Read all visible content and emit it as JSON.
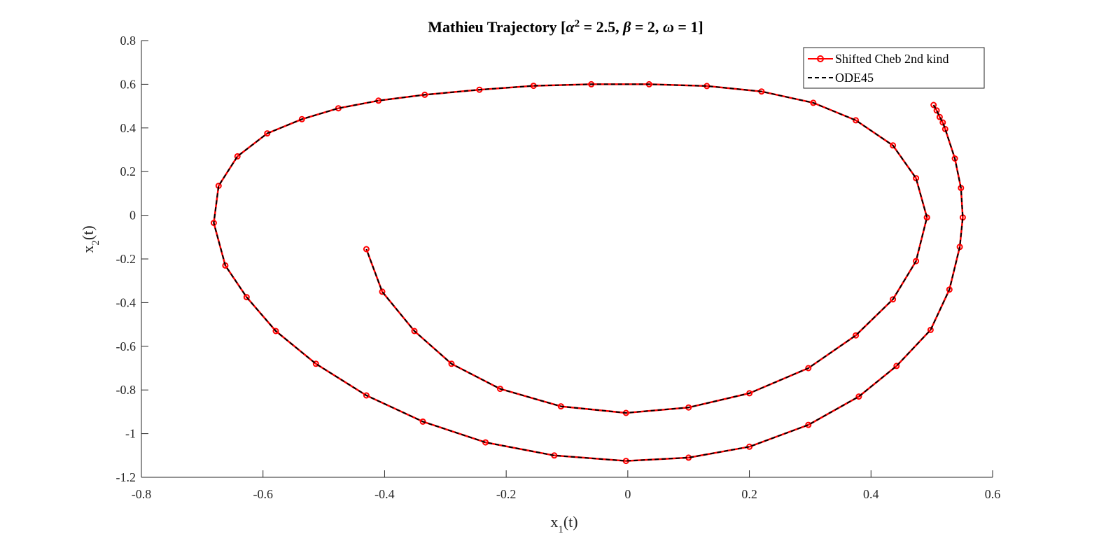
{
  "chart_data": {
    "type": "line",
    "title": {
      "prefix": "Mathieu Trajectory [",
      "alpha_symbol": "α",
      "alpha_exponent": "2",
      "alpha_value": " = 2.5, ",
      "beta_symbol": "β",
      "beta_value": " = 2, ",
      "omega_symbol": "ω",
      "omega_value": " = 1]"
    },
    "xlabel": {
      "base": "x",
      "sub": "1",
      "suffix": "(t)"
    },
    "ylabel": {
      "base": "x",
      "sub": "2",
      "suffix": "(t)"
    },
    "xlim": [
      -0.8,
      0.6
    ],
    "ylim": [
      -1.2,
      0.8
    ],
    "xticks": [
      -0.8,
      -0.6,
      -0.4,
      -0.2,
      0,
      0.2,
      0.4,
      0.6
    ],
    "xtick_labels": [
      "-0.8",
      "-0.6",
      "-0.4",
      "-0.2",
      "0",
      "0.2",
      "0.4",
      "0.6"
    ],
    "yticks": [
      -1.2,
      -1,
      -0.8,
      -0.6,
      -0.4,
      -0.2,
      0,
      0.2,
      0.4,
      0.6,
      0.8
    ],
    "ytick_labels": [
      "-1.2",
      "-1",
      "-0.8",
      "-0.6",
      "-0.4",
      "-0.2",
      "0",
      "0.2",
      "0.4",
      "0.6",
      "0.8"
    ],
    "grid": false,
    "legend_position": "top-right",
    "series": [
      {
        "name": "Shifted Cheb 2nd kind",
        "color": "#ff0000",
        "line_style": "solid",
        "marker": "circle",
        "x": [
          0.503,
          0.508,
          0.513,
          0.518,
          0.522,
          0.538,
          0.548,
          0.551,
          0.546,
          0.529,
          0.498,
          0.442,
          0.38,
          0.297,
          0.2,
          0.1,
          -0.003,
          -0.121,
          -0.234,
          -0.337,
          -0.43,
          -0.513,
          -0.579,
          -0.627,
          -0.662,
          -0.681,
          -0.673,
          -0.642,
          -0.593,
          -0.536,
          -0.476,
          -0.41,
          -0.334,
          -0.244,
          -0.155,
          -0.06,
          0.035,
          0.13,
          0.22,
          0.305,
          0.375,
          0.436,
          0.474,
          0.492,
          0.492,
          0.474,
          0.436,
          0.375,
          0.297,
          0.2,
          0.1,
          -0.003,
          -0.11,
          -0.21,
          -0.29,
          -0.351,
          -0.404,
          -0.43
        ],
        "y": [
          0.505,
          0.48,
          0.45,
          0.425,
          0.395,
          0.26,
          0.125,
          -0.01,
          -0.145,
          -0.34,
          -0.525,
          -0.69,
          -0.83,
          -0.96,
          -1.06,
          -1.11,
          -1.125,
          -1.1,
          -1.04,
          -0.945,
          -0.825,
          -0.68,
          -0.53,
          -0.375,
          -0.23,
          -0.035,
          0.135,
          0.27,
          0.375,
          0.44,
          0.49,
          0.525,
          0.552,
          0.575,
          0.593,
          0.6,
          0.6,
          0.592,
          0.567,
          0.515,
          0.435,
          0.32,
          0.17,
          -0.01,
          -0.01,
          -0.21,
          -0.385,
          -0.55,
          -0.7,
          -0.815,
          -0.88,
          -0.905,
          -0.875,
          -0.795,
          -0.68,
          -0.53,
          -0.35,
          -0.155
        ]
      },
      {
        "name": "ODE45",
        "color": "#000000",
        "line_style": "dashed",
        "marker": "none",
        "x": [
          0.503,
          0.508,
          0.513,
          0.518,
          0.522,
          0.538,
          0.548,
          0.551,
          0.546,
          0.529,
          0.498,
          0.442,
          0.38,
          0.297,
          0.2,
          0.1,
          -0.003,
          -0.121,
          -0.234,
          -0.337,
          -0.43,
          -0.513,
          -0.579,
          -0.627,
          -0.662,
          -0.681,
          -0.673,
          -0.642,
          -0.593,
          -0.536,
          -0.476,
          -0.41,
          -0.334,
          -0.244,
          -0.155,
          -0.06,
          0.035,
          0.13,
          0.22,
          0.305,
          0.375,
          0.436,
          0.474,
          0.492,
          0.492,
          0.474,
          0.436,
          0.375,
          0.297,
          0.2,
          0.1,
          -0.003,
          -0.11,
          -0.21,
          -0.29,
          -0.351,
          -0.404,
          -0.43
        ],
        "y": [
          0.505,
          0.48,
          0.45,
          0.425,
          0.395,
          0.26,
          0.125,
          -0.01,
          -0.145,
          -0.34,
          -0.525,
          -0.69,
          -0.83,
          -0.96,
          -1.06,
          -1.11,
          -1.125,
          -1.1,
          -1.04,
          -0.945,
          -0.825,
          -0.68,
          -0.53,
          -0.375,
          -0.23,
          -0.035,
          0.135,
          0.27,
          0.375,
          0.44,
          0.49,
          0.525,
          0.552,
          0.575,
          0.593,
          0.6,
          0.6,
          0.592,
          0.567,
          0.515,
          0.435,
          0.32,
          0.17,
          -0.01,
          -0.01,
          -0.21,
          -0.385,
          -0.55,
          -0.7,
          -0.815,
          -0.88,
          -0.905,
          -0.875,
          -0.795,
          -0.68,
          -0.53,
          -0.35,
          -0.155
        ]
      }
    ]
  }
}
